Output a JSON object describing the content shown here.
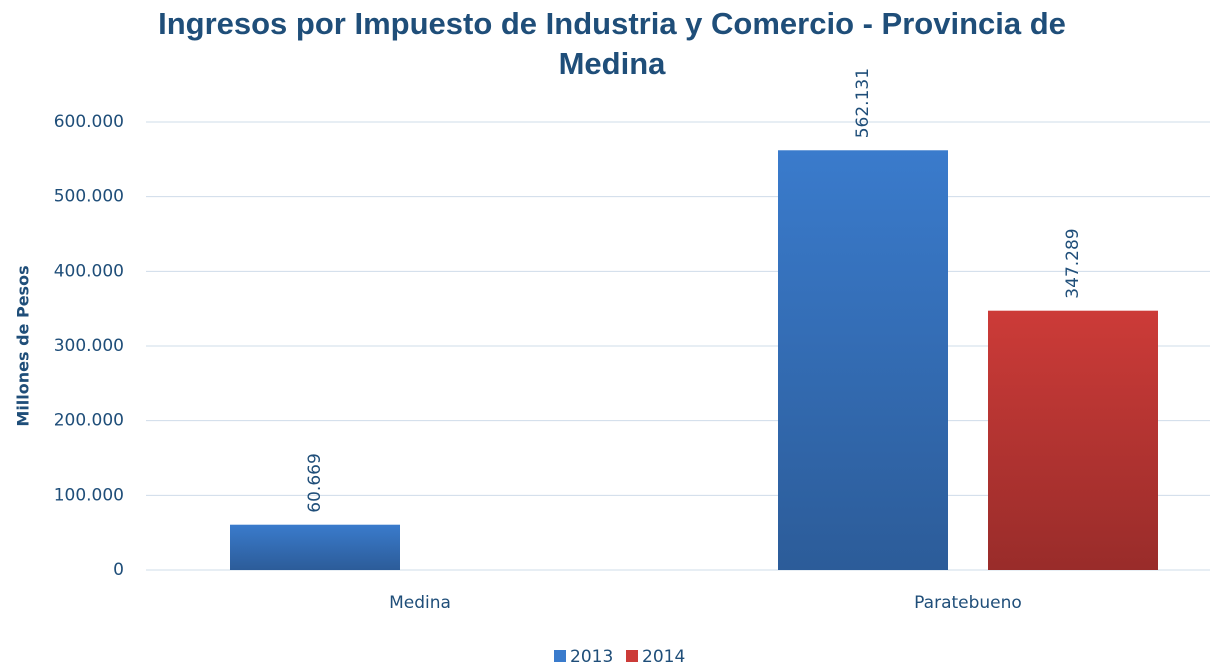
{
  "chart_data": {
    "type": "bar",
    "title": "Ingresos por Impuesto de Industria y Comercio - Provincia de Medina",
    "y_label": "Millones de Pesos",
    "categories": [
      "Medina",
      "Paratebueno"
    ],
    "series": [
      {
        "name": "2013",
        "color": "#3a7bcc",
        "values": [
          60669,
          562131
        ],
        "value_labels": [
          "60.669",
          "562.131"
        ]
      },
      {
        "name": "2014",
        "color": "#cc3b38",
        "values": [
          null,
          347289
        ],
        "value_labels": [
          null,
          "347.289"
        ]
      }
    ],
    "ylim": [
      0,
      600000
    ],
    "yticks": [
      0,
      {
        "value": 100000,
        "label": "100.000"
      },
      {
        "value": 200000,
        "label": "200.000"
      },
      {
        "value": 300000,
        "label": "300.000"
      },
      {
        "value": 400000,
        "label": "400.000"
      },
      {
        "value": 500000,
        "label": "500.000"
      },
      {
        "value": 600000,
        "label": "600.000"
      }
    ],
    "grid": true,
    "legend": "bottom"
  }
}
